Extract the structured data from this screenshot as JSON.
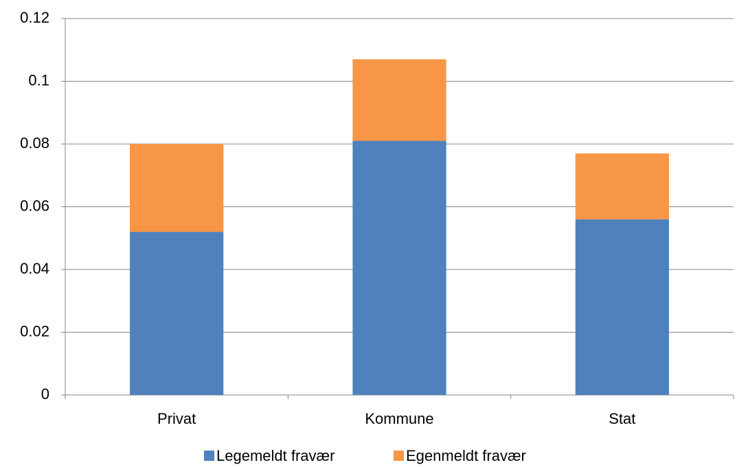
{
  "chart_data": {
    "type": "stacked_bar",
    "categories": [
      "Privat",
      "Kommune",
      "Stat"
    ],
    "series": [
      {
        "name": "Legemeldt fravær",
        "color": "#4f81bd",
        "values": [
          0.052,
          0.081,
          0.056
        ]
      },
      {
        "name": "Egenmeldt fravær",
        "color": "#f79646",
        "values": [
          0.028,
          0.026,
          0.021
        ]
      }
    ],
    "ylim": [
      0,
      0.12
    ],
    "yticks": [
      0,
      0.02,
      0.04,
      0.06,
      0.08,
      0.1,
      0.12
    ],
    "grid": true,
    "legend": "bottom"
  }
}
